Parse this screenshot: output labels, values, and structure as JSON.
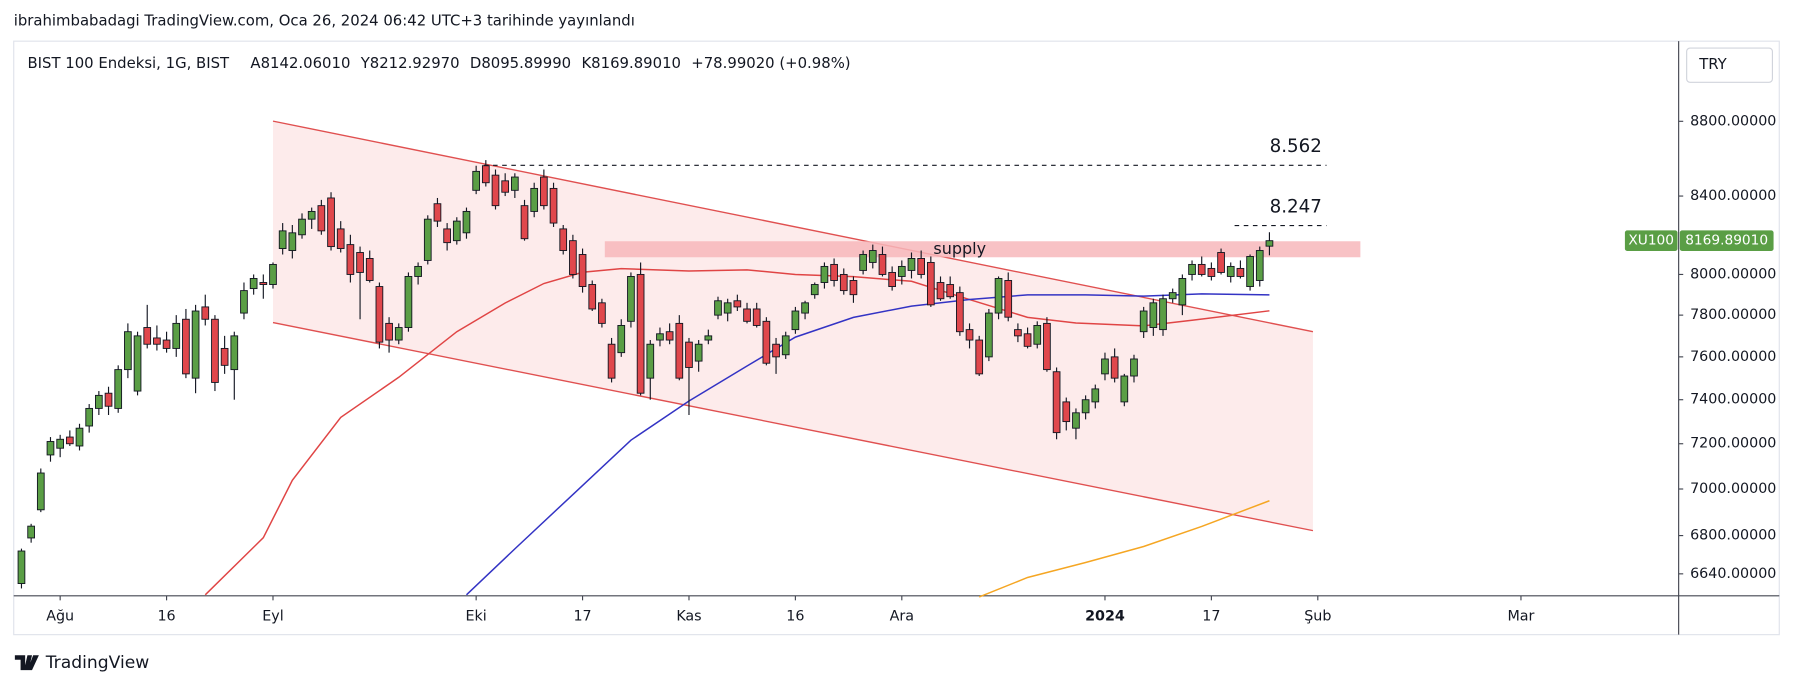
{
  "header": {
    "title": "ibrahimbabadagi TradingView.com, Oca 26, 2024 06:42 UTC+3 tarihinde yayınlandı"
  },
  "footer": {
    "brand": "TradingView"
  },
  "chart_data": {
    "type": "candlestick",
    "title": "BIST 100 Endeksi, 1G, BIST",
    "ohlc_legend": [
      "A8142.06010",
      "Y8212.92970",
      "D8095.89990",
      "K8169.89010",
      "+78.99020 (+0.98%)"
    ],
    "currency": "TRY",
    "log_scale": true,
    "grid": false,
    "up_color": "#5a9e45",
    "down_color": "#e0474c",
    "xlim": [
      -0.8,
      171.3
    ],
    "ylim": [
      6550,
      9250
    ],
    "xticks": [
      {
        "value": 4,
        "label": "Ağu"
      },
      {
        "value": 15,
        "label": "16"
      },
      {
        "value": 26,
        "label": "Eyl"
      },
      {
        "value": 47,
        "label": "Eki"
      },
      {
        "value": 58,
        "label": "17"
      },
      {
        "value": 69,
        "label": "Kas"
      },
      {
        "value": 80,
        "label": "16"
      },
      {
        "value": 91,
        "label": "Ara"
      },
      {
        "value": 112,
        "label": "2024"
      },
      {
        "value": 123,
        "label": "17"
      },
      {
        "value": 134,
        "label": "Şub"
      },
      {
        "value": 155,
        "label": "Mar"
      }
    ],
    "yticks": [
      {
        "value": 8800,
        "label": "8800.00000"
      },
      {
        "value": 8400,
        "label": "8400.00000"
      },
      {
        "value": 8000,
        "label": "8000.00000"
      },
      {
        "value": 7800,
        "label": "7800.00000"
      },
      {
        "value": 7600,
        "label": "7600.00000"
      },
      {
        "value": 7400,
        "label": "7400.00000"
      },
      {
        "value": 7200,
        "label": "7200.00000"
      },
      {
        "value": 7000,
        "label": "7000.00000"
      },
      {
        "value": 6800,
        "label": "6800.00000"
      },
      {
        "value": 6640,
        "label": "6640.00000"
      }
    ],
    "candles": [
      [
        6600,
        6745,
        6580,
        6735
      ],
      [
        6790,
        6850,
        6770,
        6840
      ],
      [
        6910,
        7090,
        6900,
        7070
      ],
      [
        7150,
        7230,
        7120,
        7210
      ],
      [
        7180,
        7240,
        7140,
        7220
      ],
      [
        7230,
        7260,
        7190,
        7200
      ],
      [
        7190,
        7290,
        7170,
        7270
      ],
      [
        7280,
        7380,
        7250,
        7360
      ],
      [
        7360,
        7440,
        7330,
        7420
      ],
      [
        7430,
        7460,
        7330,
        7370
      ],
      [
        7360,
        7560,
        7340,
        7540
      ],
      [
        7540,
        7760,
        7500,
        7720
      ],
      [
        7440,
        7720,
        7420,
        7700
      ],
      [
        7740,
        7850,
        7640,
        7660
      ],
      [
        7690,
        7750,
        7630,
        7660
      ],
      [
        7680,
        7720,
        7620,
        7640
      ],
      [
        7640,
        7800,
        7600,
        7760
      ],
      [
        7780,
        7830,
        7500,
        7520
      ],
      [
        7500,
        7850,
        7430,
        7820
      ],
      [
        7840,
        7900,
        7750,
        7780
      ],
      [
        7780,
        7800,
        7440,
        7480
      ],
      [
        7640,
        7700,
        7520,
        7560
      ],
      [
        7540,
        7720,
        7400,
        7700
      ],
      [
        7810,
        7960,
        7780,
        7920
      ],
      [
        7930,
        8000,
        7900,
        7980
      ],
      [
        7960,
        8000,
        7880,
        7950
      ],
      [
        7950,
        8060,
        7930,
        8050
      ],
      [
        8130,
        8260,
        8100,
        8220
      ],
      [
        8120,
        8250,
        8080,
        8210
      ],
      [
        8200,
        8310,
        8180,
        8280
      ],
      [
        8280,
        8340,
        8230,
        8320
      ],
      [
        8350,
        8380,
        8200,
        8220
      ],
      [
        8390,
        8420,
        8120,
        8140
      ],
      [
        8230,
        8270,
        8110,
        8130
      ],
      [
        8150,
        8200,
        7960,
        8000
      ],
      [
        8110,
        8140,
        7780,
        8010
      ],
      [
        8080,
        8120,
        7960,
        7970
      ],
      [
        7940,
        7960,
        7640,
        7670
      ],
      [
        7760,
        7790,
        7620,
        7680
      ],
      [
        7680,
        7760,
        7660,
        7740
      ],
      [
        7740,
        8010,
        7720,
        7990
      ],
      [
        7990,
        8060,
        7950,
        8040
      ],
      [
        8070,
        8300,
        8050,
        8280
      ],
      [
        8360,
        8390,
        8240,
        8270
      ],
      [
        8230,
        8260,
        8120,
        8160
      ],
      [
        8170,
        8290,
        8150,
        8270
      ],
      [
        8210,
        8340,
        8180,
        8320
      ],
      [
        8430,
        8560,
        8410,
        8530
      ],
      [
        8560,
        8590,
        8450,
        8470
      ],
      [
        8510,
        8540,
        8330,
        8350
      ],
      [
        8480,
        8520,
        8400,
        8420
      ],
      [
        8430,
        8520,
        8390,
        8500
      ],
      [
        8350,
        8380,
        8170,
        8180
      ],
      [
        8320,
        8470,
        8290,
        8440
      ],
      [
        8500,
        8540,
        8330,
        8350
      ],
      [
        8440,
        8470,
        8240,
        8260
      ],
      [
        8230,
        8250,
        8100,
        8120
      ],
      [
        8170,
        8200,
        7980,
        8000
      ],
      [
        8100,
        8130,
        7910,
        7940
      ],
      [
        7950,
        7970,
        7820,
        7830
      ],
      [
        7860,
        7880,
        7740,
        7760
      ],
      [
        7660,
        7690,
        7480,
        7500
      ],
      [
        7620,
        7780,
        7600,
        7750
      ],
      [
        7770,
        8010,
        7740,
        7990
      ],
      [
        8000,
        8060,
        7420,
        7430
      ],
      [
        7500,
        7680,
        7400,
        7660
      ],
      [
        7680,
        7740,
        7650,
        7710
      ],
      [
        7720,
        7760,
        7660,
        7680
      ],
      [
        7760,
        7800,
        7490,
        7500
      ],
      [
        7670,
        7690,
        7330,
        7550
      ],
      [
        7580,
        7680,
        7530,
        7660
      ],
      [
        7680,
        7730,
        7660,
        7700
      ],
      [
        7800,
        7890,
        7780,
        7870
      ],
      [
        7810,
        7880,
        7770,
        7860
      ],
      [
        7870,
        7900,
        7820,
        7840
      ],
      [
        7830,
        7860,
        7760,
        7770
      ],
      [
        7830,
        7860,
        7740,
        7750
      ],
      [
        7770,
        7790,
        7560,
        7570
      ],
      [
        7660,
        7690,
        7520,
        7600
      ],
      [
        7610,
        7720,
        7590,
        7700
      ],
      [
        7730,
        7840,
        7710,
        7820
      ],
      [
        7810,
        7870,
        7780,
        7860
      ],
      [
        7900,
        7960,
        7880,
        7950
      ],
      [
        7960,
        8060,
        7930,
        8040
      ],
      [
        8050,
        8080,
        7940,
        7970
      ],
      [
        8000,
        8030,
        7900,
        7920
      ],
      [
        7970,
        7990,
        7860,
        7900
      ],
      [
        8020,
        8120,
        8000,
        8100
      ],
      [
        8060,
        8150,
        8030,
        8120
      ],
      [
        8100,
        8140,
        7990,
        8000
      ],
      [
        8010,
        8040,
        7920,
        7940
      ],
      [
        7990,
        8070,
        7950,
        8040
      ],
      [
        8020,
        8110,
        7980,
        8080
      ],
      [
        8080,
        8120,
        7980,
        8000
      ],
      [
        8060,
        8090,
        7840,
        7850
      ],
      [
        7960,
        7990,
        7870,
        7880
      ],
      [
        7950,
        7990,
        7880,
        7890
      ],
      [
        7910,
        7940,
        7700,
        7720
      ],
      [
        7730,
        7760,
        7640,
        7680
      ],
      [
        7680,
        7700,
        7510,
        7520
      ],
      [
        7600,
        7830,
        7580,
        7810
      ],
      [
        7810,
        7990,
        7780,
        7980
      ],
      [
        7970,
        8010,
        7770,
        7790
      ],
      [
        7730,
        7760,
        7670,
        7700
      ],
      [
        7710,
        7740,
        7640,
        7650
      ],
      [
        7660,
        7770,
        7640,
        7750
      ],
      [
        7760,
        7790,
        7530,
        7540
      ],
      [
        7530,
        7550,
        7220,
        7250
      ],
      [
        7390,
        7410,
        7260,
        7300
      ],
      [
        7270,
        7360,
        7220,
        7340
      ],
      [
        7340,
        7420,
        7310,
        7400
      ],
      [
        7390,
        7470,
        7360,
        7450
      ],
      [
        7520,
        7620,
        7490,
        7590
      ],
      [
        7600,
        7640,
        7480,
        7500
      ],
      [
        7390,
        7520,
        7370,
        7510
      ],
      [
        7510,
        7610,
        7480,
        7590
      ],
      [
        7720,
        7840,
        7690,
        7820
      ],
      [
        7740,
        7880,
        7700,
        7860
      ],
      [
        7730,
        7900,
        7700,
        7880
      ],
      [
        7880,
        7930,
        7860,
        7910
      ],
      [
        7850,
        8000,
        7800,
        7980
      ],
      [
        8000,
        8070,
        7970,
        8050
      ],
      [
        8050,
        8090,
        7990,
        8000
      ],
      [
        8030,
        8060,
        7970,
        7990
      ],
      [
        8110,
        8130,
        8000,
        8010
      ],
      [
        7990,
        8060,
        7960,
        8040
      ],
      [
        8030,
        8070,
        7980,
        7990
      ],
      [
        7940,
        8100,
        7920,
        8090
      ],
      [
        7970,
        8140,
        7940,
        8120
      ],
      [
        8142.0601,
        8212.9297,
        8095.8999,
        8169.8901
      ]
    ],
    "lines": [
      {
        "color": "#e04545",
        "x": [
          19,
          25,
          28,
          33,
          39,
          45,
          50,
          54,
          58,
          62,
          69,
          75,
          80,
          86,
          92,
          98,
          104,
          109,
          116,
          121,
          129
        ],
        "values": [
          6554,
          6791,
          7038,
          7319,
          7504,
          7720,
          7859,
          7955,
          8011,
          8029,
          8017,
          8023,
          8000,
          7989,
          7966,
          7876,
          7789,
          7762,
          7748,
          7775,
          7821
        ]
      },
      {
        "color": "#3333c4",
        "x": [
          46,
          51,
          57,
          63,
          69,
          75,
          80,
          86,
          92,
          98,
          104,
          110,
          116,
          122,
          129
        ],
        "values": [
          6554,
          6744,
          6976,
          7216,
          7394,
          7557,
          7694,
          7789,
          7844,
          7876,
          7899,
          7899,
          7893,
          7904,
          7899
        ]
      },
      {
        "color": "#f5a623",
        "x": [
          99,
          104,
          110,
          116,
          122,
          129
        ],
        "values": [
          6545,
          6625,
          6687,
          6754,
          6839,
          6949
        ]
      }
    ],
    "channel": {
      "color": "#e05050",
      "upper": [
        [
          26,
          8801
        ],
        [
          133.5,
          7720
        ]
      ],
      "lower": [
        [
          26,
          7764
        ],
        [
          133.5,
          6821
        ]
      ]
    },
    "zone": {
      "label": "supply",
      "x": [
        60.3,
        138.4
      ],
      "y": [
        8086,
        8167
      ]
    },
    "levels": [
      {
        "value": 8562,
        "label": "8.562",
        "x": [
          47.8,
          134.9
        ]
      },
      {
        "value": 8247,
        "label": "8.247",
        "x": [
          125.4,
          134.9
        ]
      }
    ],
    "price_tag": {
      "symbol": "XU100",
      "value": 8169.8901,
      "label": "8169.89010"
    }
  }
}
